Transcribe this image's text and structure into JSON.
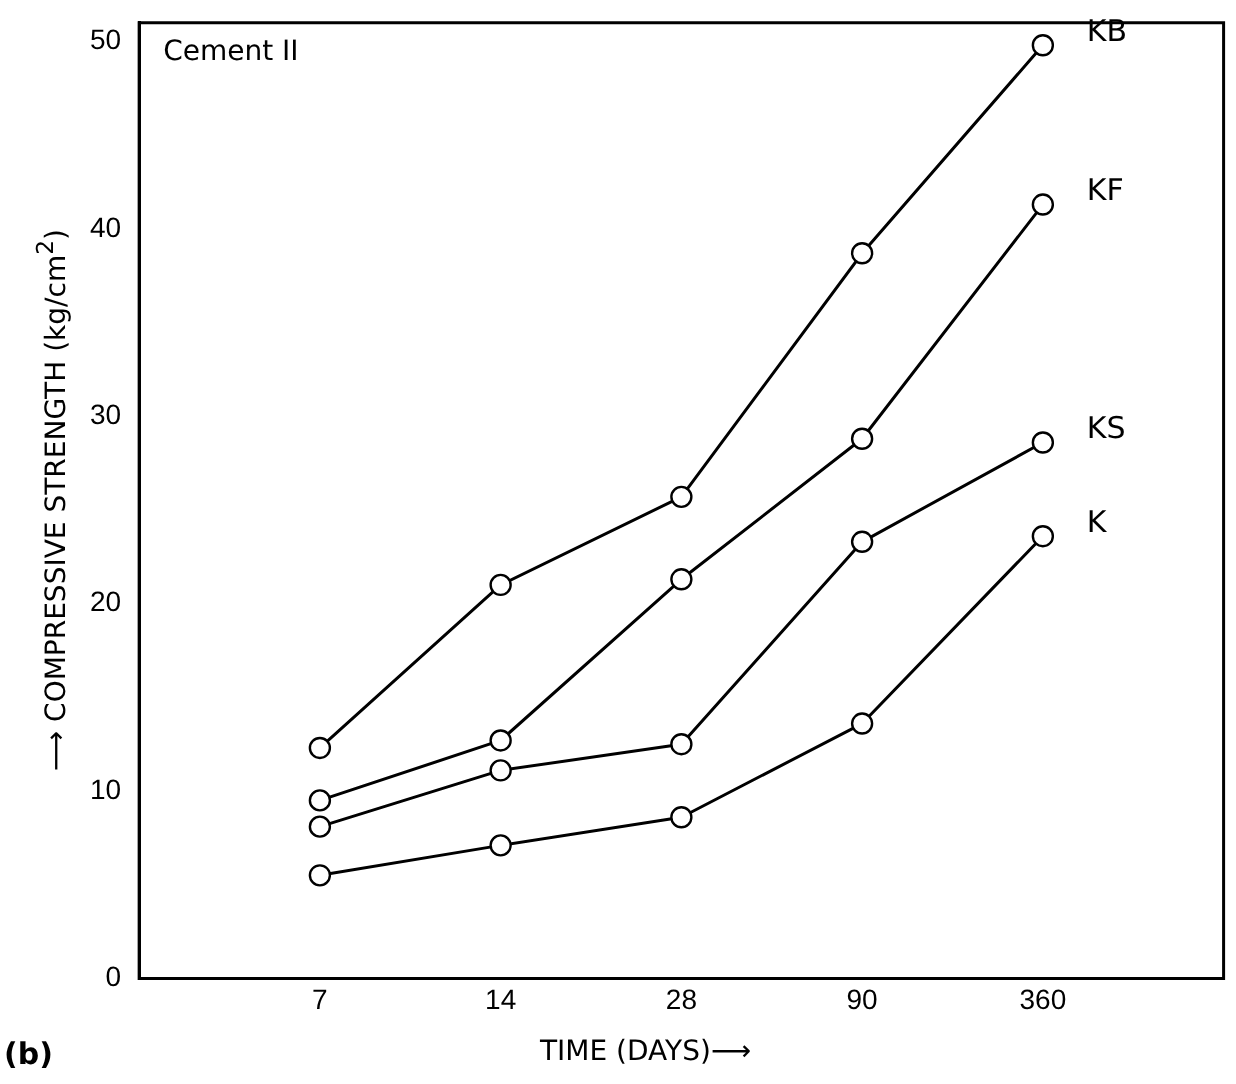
{
  "chart_data": {
    "type": "line",
    "xlabel": "TIME (DAYS)⟶",
    "ylabel": "⟶ COMPRESSIVE STRENGTH (kg/cm$^{2}$)",
    "categories": [
      "7",
      "14",
      "28",
      "90",
      "360"
    ],
    "series": [
      {
        "name": "KB",
        "color": "#000000",
        "values": [
          12.3,
          21,
          25.7,
          38.7,
          49.8
        ]
      },
      {
        "name": "KF",
        "color": "#000000",
        "values": [
          9.5,
          12.7,
          21.3,
          28.8,
          41.3
        ]
      },
      {
        "name": "KS",
        "color": "#000000",
        "values": [
          8.1,
          11.1,
          12.5,
          23.3,
          28.6
        ]
      },
      {
        "name": "K",
        "color": "#000000",
        "values": [
          5.5,
          7.1,
          8.6,
          13.6,
          23.6
        ]
      }
    ],
    "ylim": [
      0,
      51
    ],
    "yticks": [
      0,
      10,
      20,
      30,
      40,
      50
    ],
    "grid": false,
    "legend": false,
    "marker": "circle",
    "line_style": "solid",
    "annotations": [
      "Cement II",
      "(b)"
    ]
  }
}
